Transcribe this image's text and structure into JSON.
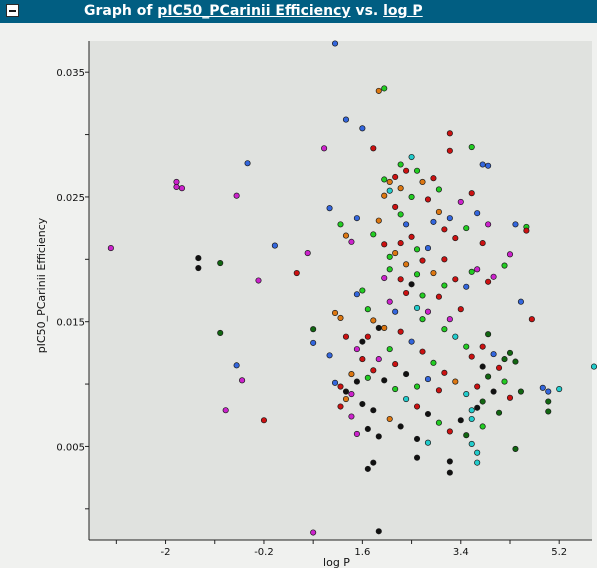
{
  "window": {
    "title_prefix": "Graph of",
    "y_field": "pIC50_PCarinii Efficiency",
    "title_vs": "vs.",
    "x_field": "log P"
  },
  "colors": {
    "titlebar": "#015e82",
    "plot_bg": "#e0e2df",
    "page_bg": "#f0f1ef"
  },
  "chart_data": {
    "type": "scatter",
    "xlabel": "log P",
    "ylabel": "pIC50_PCarinii Efficiency",
    "xlim": [
      -3.4,
      5.8
    ],
    "ylim": [
      -0.0025,
      0.0375
    ],
    "xticks": [
      -2,
      -0.2,
      1.6,
      3.4,
      5.2
    ],
    "xtick_labels": [
      "-2",
      "-0.2",
      "1.6",
      "3.4",
      "5.2"
    ],
    "yticks": [
      0.005,
      0.015,
      0.025,
      0.035
    ],
    "ytick_labels": [
      "0.005",
      "0.015",
      "0.025",
      "0.035"
    ],
    "grid": false,
    "legend": "none",
    "palette": {
      "magenta": "#cc22cc",
      "green": "#22cc22",
      "red": "#cc1111",
      "blue": "#3366dd",
      "orange": "#dd7711",
      "cyan": "#22cccc",
      "black": "#111111",
      "darkgreen": "#116611"
    },
    "points": [
      {
        "x": -3.0,
        "y": 0.0209,
        "c": "magenta"
      },
      {
        "x": -1.8,
        "y": 0.0262,
        "c": "magenta"
      },
      {
        "x": -1.7,
        "y": 0.0257,
        "c": "magenta"
      },
      {
        "x": -1.8,
        "y": 0.0258,
        "c": "magenta"
      },
      {
        "x": -0.7,
        "y": 0.0251,
        "c": "magenta"
      },
      {
        "x": -0.5,
        "y": 0.0277,
        "c": "blue"
      },
      {
        "x": -1.4,
        "y": 0.0201,
        "c": "black"
      },
      {
        "x": -1.4,
        "y": 0.0193,
        "c": "black"
      },
      {
        "x": -1.0,
        "y": 0.0197,
        "c": "darkgreen"
      },
      {
        "x": -1.0,
        "y": 0.0141,
        "c": "darkgreen"
      },
      {
        "x": -0.7,
        "y": 0.0115,
        "c": "blue"
      },
      {
        "x": -0.6,
        "y": 0.0103,
        "c": "magenta"
      },
      {
        "x": -0.9,
        "y": 0.0079,
        "c": "magenta"
      },
      {
        "x": -0.2,
        "y": 0.0071,
        "c": "red"
      },
      {
        "x": -0.3,
        "y": 0.0183,
        "c": "magenta"
      },
      {
        "x": 0.0,
        "y": 0.0211,
        "c": "blue"
      },
      {
        "x": 0.4,
        "y": 0.0189,
        "c": "red"
      },
      {
        "x": 0.6,
        "y": 0.0205,
        "c": "magenta"
      },
      {
        "x": 0.9,
        "y": 0.0289,
        "c": "magenta"
      },
      {
        "x": 1.0,
        "y": 0.0241,
        "c": "blue"
      },
      {
        "x": 1.1,
        "y": 0.0373,
        "c": "blue"
      },
      {
        "x": 1.3,
        "y": 0.0312,
        "c": "blue"
      },
      {
        "x": 1.5,
        "y": 0.0233,
        "c": "blue"
      },
      {
        "x": 1.2,
        "y": 0.0228,
        "c": "green"
      },
      {
        "x": 1.6,
        "y": 0.0305,
        "c": "blue"
      },
      {
        "x": 1.4,
        "y": 0.0214,
        "c": "magenta"
      },
      {
        "x": 1.3,
        "y": 0.0219,
        "c": "orange"
      },
      {
        "x": 1.9,
        "y": 0.0335,
        "c": "orange"
      },
      {
        "x": 2.0,
        "y": 0.0337,
        "c": "green"
      },
      {
        "x": 1.8,
        "y": 0.0289,
        "c": "red"
      },
      {
        "x": 2.1,
        "y": 0.0262,
        "c": "orange"
      },
      {
        "x": 2.1,
        "y": 0.0255,
        "c": "cyan"
      },
      {
        "x": 2.3,
        "y": 0.0276,
        "c": "green"
      },
      {
        "x": 3.2,
        "y": 0.0301,
        "c": "red"
      },
      {
        "x": 3.6,
        "y": 0.029,
        "c": "green"
      },
      {
        "x": 3.2,
        "y": 0.0287,
        "c": "red"
      },
      {
        "x": 3.8,
        "y": 0.0276,
        "c": "blue"
      },
      {
        "x": 3.9,
        "y": 0.0275,
        "c": "blue"
      },
      {
        "x": 4.4,
        "y": 0.0228,
        "c": "blue"
      },
      {
        "x": 4.6,
        "y": 0.0226,
        "c": "green"
      },
      {
        "x": 4.6,
        "y": 0.0223,
        "c": "red"
      },
      {
        "x": 4.3,
        "y": 0.0204,
        "c": "magenta"
      },
      {
        "x": 4.2,
        "y": 0.0195,
        "c": "green"
      },
      {
        "x": 4.5,
        "y": 0.0166,
        "c": "blue"
      },
      {
        "x": 4.7,
        "y": 0.0152,
        "c": "red"
      },
      {
        "x": 4.3,
        "y": 0.0125,
        "c": "darkgreen"
      },
      {
        "x": 4.4,
        "y": 0.0118,
        "c": "darkgreen"
      },
      {
        "x": 4.9,
        "y": 0.0097,
        "c": "blue"
      },
      {
        "x": 5.0,
        "y": 0.0094,
        "c": "blue"
      },
      {
        "x": 5.2,
        "y": 0.0096,
        "c": "cyan"
      },
      {
        "x": 5.0,
        "y": 0.0086,
        "c": "darkgreen"
      },
      {
        "x": 5.0,
        "y": 0.0078,
        "c": "darkgreen"
      },
      {
        "x": 6.1,
        "y": 0.0114,
        "c": "cyan"
      },
      {
        "x": 4.1,
        "y": 0.0077,
        "c": "darkgreen"
      },
      {
        "x": 4.4,
        "y": 0.0048,
        "c": "darkgreen"
      },
      {
        "x": 3.6,
        "y": 0.0052,
        "c": "cyan"
      },
      {
        "x": 3.7,
        "y": 0.0045,
        "c": "cyan"
      },
      {
        "x": 3.7,
        "y": 0.0037,
        "c": "cyan"
      },
      {
        "x": 3.2,
        "y": 0.0038,
        "c": "black"
      },
      {
        "x": 3.2,
        "y": 0.0029,
        "c": "black"
      },
      {
        "x": 2.6,
        "y": 0.0041,
        "c": "black"
      },
      {
        "x": 1.8,
        "y": 0.0037,
        "c": "black"
      },
      {
        "x": 1.7,
        "y": 0.0032,
        "c": "black"
      },
      {
        "x": 1.9,
        "y": -0.0018,
        "c": "black"
      },
      {
        "x": 0.7,
        "y": -0.0019,
        "c": "magenta"
      },
      {
        "x": 1.8,
        "y": 0.0079,
        "c": "black"
      },
      {
        "x": 1.5,
        "y": 0.0102,
        "c": "black"
      },
      {
        "x": 1.6,
        "y": 0.0134,
        "c": "black"
      },
      {
        "x": 1.7,
        "y": 0.0138,
        "c": "red"
      },
      {
        "x": 1.9,
        "y": 0.0145,
        "c": "black"
      },
      {
        "x": 1.4,
        "y": 0.0108,
        "c": "orange"
      },
      {
        "x": 1.4,
        "y": 0.0092,
        "c": "magenta"
      },
      {
        "x": 1.3,
        "y": 0.0088,
        "c": "orange"
      },
      {
        "x": 1.2,
        "y": 0.0098,
        "c": "red"
      },
      {
        "x": 1.1,
        "y": 0.0101,
        "c": "blue"
      },
      {
        "x": 1.0,
        "y": 0.0123,
        "c": "blue"
      },
      {
        "x": 0.7,
        "y": 0.0133,
        "c": "blue"
      },
      {
        "x": 0.7,
        "y": 0.0144,
        "c": "darkgreen"
      },
      {
        "x": 1.1,
        "y": 0.0157,
        "c": "orange"
      },
      {
        "x": 1.2,
        "y": 0.0153,
        "c": "orange"
      },
      {
        "x": 1.3,
        "y": 0.0138,
        "c": "red"
      },
      {
        "x": 1.5,
        "y": 0.0128,
        "c": "magenta"
      },
      {
        "x": 1.6,
        "y": 0.0175,
        "c": "green"
      },
      {
        "x": 1.5,
        "y": 0.0172,
        "c": "blue"
      },
      {
        "x": 2.0,
        "y": 0.0145,
        "c": "orange"
      },
      {
        "x": 2.1,
        "y": 0.0166,
        "c": "magenta"
      },
      {
        "x": 2.2,
        "y": 0.0158,
        "c": "blue"
      },
      {
        "x": 2.4,
        "y": 0.0173,
        "c": "red"
      },
      {
        "x": 2.6,
        "y": 0.0161,
        "c": "cyan"
      },
      {
        "x": 2.7,
        "y": 0.0152,
        "c": "green"
      },
      {
        "x": 2.8,
        "y": 0.0158,
        "c": "magenta"
      },
      {
        "x": 3.0,
        "y": 0.017,
        "c": "red"
      },
      {
        "x": 3.1,
        "y": 0.0179,
        "c": "green"
      },
      {
        "x": 2.9,
        "y": 0.0189,
        "c": "orange"
      },
      {
        "x": 3.3,
        "y": 0.0184,
        "c": "red"
      },
      {
        "x": 3.5,
        "y": 0.0178,
        "c": "blue"
      },
      {
        "x": 3.6,
        "y": 0.019,
        "c": "green"
      },
      {
        "x": 3.7,
        "y": 0.0192,
        "c": "magenta"
      },
      {
        "x": 3.9,
        "y": 0.0182,
        "c": "red"
      },
      {
        "x": 4.0,
        "y": 0.0186,
        "c": "magenta"
      },
      {
        "x": 3.8,
        "y": 0.0213,
        "c": "red"
      },
      {
        "x": 3.9,
        "y": 0.0228,
        "c": "magenta"
      },
      {
        "x": 3.7,
        "y": 0.0237,
        "c": "blue"
      },
      {
        "x": 3.5,
        "y": 0.0225,
        "c": "green"
      },
      {
        "x": 3.3,
        "y": 0.0217,
        "c": "red"
      },
      {
        "x": 3.1,
        "y": 0.0224,
        "c": "red"
      },
      {
        "x": 3.0,
        "y": 0.0238,
        "c": "orange"
      },
      {
        "x": 2.8,
        "y": 0.0248,
        "c": "red"
      },
      {
        "x": 2.7,
        "y": 0.0262,
        "c": "orange"
      },
      {
        "x": 2.6,
        "y": 0.0271,
        "c": "green"
      },
      {
        "x": 2.5,
        "y": 0.0282,
        "c": "cyan"
      },
      {
        "x": 2.4,
        "y": 0.0271,
        "c": "red"
      },
      {
        "x": 2.2,
        "y": 0.0266,
        "c": "red"
      },
      {
        "x": 2.0,
        "y": 0.0264,
        "c": "green"
      },
      {
        "x": 2.0,
        "y": 0.0251,
        "c": "orange"
      },
      {
        "x": 2.2,
        "y": 0.0242,
        "c": "red"
      },
      {
        "x": 2.3,
        "y": 0.0236,
        "c": "green"
      },
      {
        "x": 2.4,
        "y": 0.0228,
        "c": "blue"
      },
      {
        "x": 2.5,
        "y": 0.0218,
        "c": "red"
      },
      {
        "x": 2.6,
        "y": 0.0208,
        "c": "green"
      },
      {
        "x": 2.7,
        "y": 0.0199,
        "c": "red"
      },
      {
        "x": 2.8,
        "y": 0.0209,
        "c": "blue"
      },
      {
        "x": 2.2,
        "y": 0.0205,
        "c": "orange"
      },
      {
        "x": 2.0,
        "y": 0.0212,
        "c": "red"
      },
      {
        "x": 1.8,
        "y": 0.022,
        "c": "green"
      },
      {
        "x": 1.9,
        "y": 0.0231,
        "c": "orange"
      },
      {
        "x": 2.1,
        "y": 0.0192,
        "c": "green"
      },
      {
        "x": 2.3,
        "y": 0.0184,
        "c": "red"
      },
      {
        "x": 2.5,
        "y": 0.018,
        "c": "black"
      },
      {
        "x": 2.7,
        "y": 0.0171,
        "c": "green"
      },
      {
        "x": 3.4,
        "y": 0.016,
        "c": "red"
      },
      {
        "x": 3.2,
        "y": 0.0152,
        "c": "magenta"
      },
      {
        "x": 3.1,
        "y": 0.0144,
        "c": "green"
      },
      {
        "x": 3.3,
        "y": 0.0138,
        "c": "cyan"
      },
      {
        "x": 3.5,
        "y": 0.013,
        "c": "green"
      },
      {
        "x": 3.6,
        "y": 0.0122,
        "c": "red"
      },
      {
        "x": 3.8,
        "y": 0.0114,
        "c": "black"
      },
      {
        "x": 3.9,
        "y": 0.0106,
        "c": "darkgreen"
      },
      {
        "x": 3.7,
        "y": 0.0098,
        "c": "red"
      },
      {
        "x": 3.5,
        "y": 0.0092,
        "c": "cyan"
      },
      {
        "x": 3.3,
        "y": 0.0102,
        "c": "orange"
      },
      {
        "x": 3.1,
        "y": 0.0109,
        "c": "red"
      },
      {
        "x": 2.9,
        "y": 0.0117,
        "c": "green"
      },
      {
        "x": 2.7,
        "y": 0.0126,
        "c": "red"
      },
      {
        "x": 2.5,
        "y": 0.0134,
        "c": "blue"
      },
      {
        "x": 2.3,
        "y": 0.0142,
        "c": "red"
      },
      {
        "x": 2.1,
        "y": 0.0128,
        "c": "green"
      },
      {
        "x": 1.9,
        "y": 0.012,
        "c": "magenta"
      },
      {
        "x": 1.8,
        "y": 0.0111,
        "c": "red"
      },
      {
        "x": 2.0,
        "y": 0.0103,
        "c": "black"
      },
      {
        "x": 2.2,
        "y": 0.0096,
        "c": "green"
      },
      {
        "x": 2.4,
        "y": 0.0088,
        "c": "cyan"
      },
      {
        "x": 2.6,
        "y": 0.0082,
        "c": "red"
      },
      {
        "x": 2.8,
        "y": 0.0076,
        "c": "black"
      },
      {
        "x": 3.0,
        "y": 0.0069,
        "c": "green"
      },
      {
        "x": 3.2,
        "y": 0.0062,
        "c": "red"
      },
      {
        "x": 3.4,
        "y": 0.0071,
        "c": "black"
      },
      {
        "x": 3.6,
        "y": 0.0079,
        "c": "cyan"
      },
      {
        "x": 3.8,
        "y": 0.0086,
        "c": "darkgreen"
      },
      {
        "x": 4.0,
        "y": 0.0094,
        "c": "black"
      },
      {
        "x": 4.2,
        "y": 0.0102,
        "c": "green"
      },
      {
        "x": 4.1,
        "y": 0.0113,
        "c": "red"
      },
      {
        "x": 4.0,
        "y": 0.0124,
        "c": "blue"
      },
      {
        "x": 1.6,
        "y": 0.0084,
        "c": "black"
      },
      {
        "x": 1.7,
        "y": 0.0064,
        "c": "black"
      },
      {
        "x": 1.9,
        "y": 0.0058,
        "c": "black"
      },
      {
        "x": 2.1,
        "y": 0.0072,
        "c": "orange"
      },
      {
        "x": 2.3,
        "y": 0.0066,
        "c": "black"
      },
      {
        "x": 2.6,
        "y": 0.0056,
        "c": "black"
      },
      {
        "x": 2.8,
        "y": 0.0053,
        "c": "cyan"
      },
      {
        "x": 3.5,
        "y": 0.0059,
        "c": "darkgreen"
      },
      {
        "x": 3.8,
        "y": 0.0066,
        "c": "green"
      },
      {
        "x": 1.4,
        "y": 0.0074,
        "c": "magenta"
      },
      {
        "x": 1.2,
        "y": 0.0082,
        "c": "red"
      },
      {
        "x": 1.3,
        "y": 0.0094,
        "c": "black"
      },
      {
        "x": 1.5,
        "y": 0.006,
        "c": "magenta"
      },
      {
        "x": 2.0,
        "y": 0.0185,
        "c": "magenta"
      },
      {
        "x": 2.1,
        "y": 0.0202,
        "c": "green"
      },
      {
        "x": 2.3,
        "y": 0.0213,
        "c": "red"
      },
      {
        "x": 2.4,
        "y": 0.0196,
        "c": "orange"
      },
      {
        "x": 2.6,
        "y": 0.0188,
        "c": "green"
      },
      {
        "x": 2.9,
        "y": 0.023,
        "c": "blue"
      },
      {
        "x": 3.1,
        "y": 0.02,
        "c": "red"
      },
      {
        "x": 3.2,
        "y": 0.0233,
        "c": "blue"
      },
      {
        "x": 3.4,
        "y": 0.0246,
        "c": "magenta"
      },
      {
        "x": 3.6,
        "y": 0.0253,
        "c": "red"
      },
      {
        "x": 3.0,
        "y": 0.0256,
        "c": "green"
      },
      {
        "x": 2.9,
        "y": 0.0265,
        "c": "red"
      },
      {
        "x": 2.5,
        "y": 0.025,
        "c": "green"
      },
      {
        "x": 2.3,
        "y": 0.0257,
        "c": "orange"
      },
      {
        "x": 1.7,
        "y": 0.016,
        "c": "green"
      },
      {
        "x": 1.8,
        "y": 0.0151,
        "c": "orange"
      },
      {
        "x": 1.6,
        "y": 0.012,
        "c": "red"
      },
      {
        "x": 1.7,
        "y": 0.0105,
        "c": "green"
      },
      {
        "x": 2.2,
        "y": 0.0116,
        "c": "red"
      },
      {
        "x": 2.4,
        "y": 0.0108,
        "c": "black"
      },
      {
        "x": 2.6,
        "y": 0.0098,
        "c": "green"
      },
      {
        "x": 2.8,
        "y": 0.0104,
        "c": "blue"
      },
      {
        "x": 3.0,
        "y": 0.0095,
        "c": "red"
      },
      {
        "x": 3.9,
        "y": 0.014,
        "c": "darkgreen"
      },
      {
        "x": 3.8,
        "y": 0.013,
        "c": "red"
      },
      {
        "x": 4.2,
        "y": 0.012,
        "c": "darkgreen"
      },
      {
        "x": 4.3,
        "y": 0.0089,
        "c": "red"
      },
      {
        "x": 4.5,
        "y": 0.0094,
        "c": "darkgreen"
      },
      {
        "x": 3.6,
        "y": 0.0072,
        "c": "cyan"
      },
      {
        "x": 3.7,
        "y": 0.0081,
        "c": "black"
      }
    ]
  }
}
